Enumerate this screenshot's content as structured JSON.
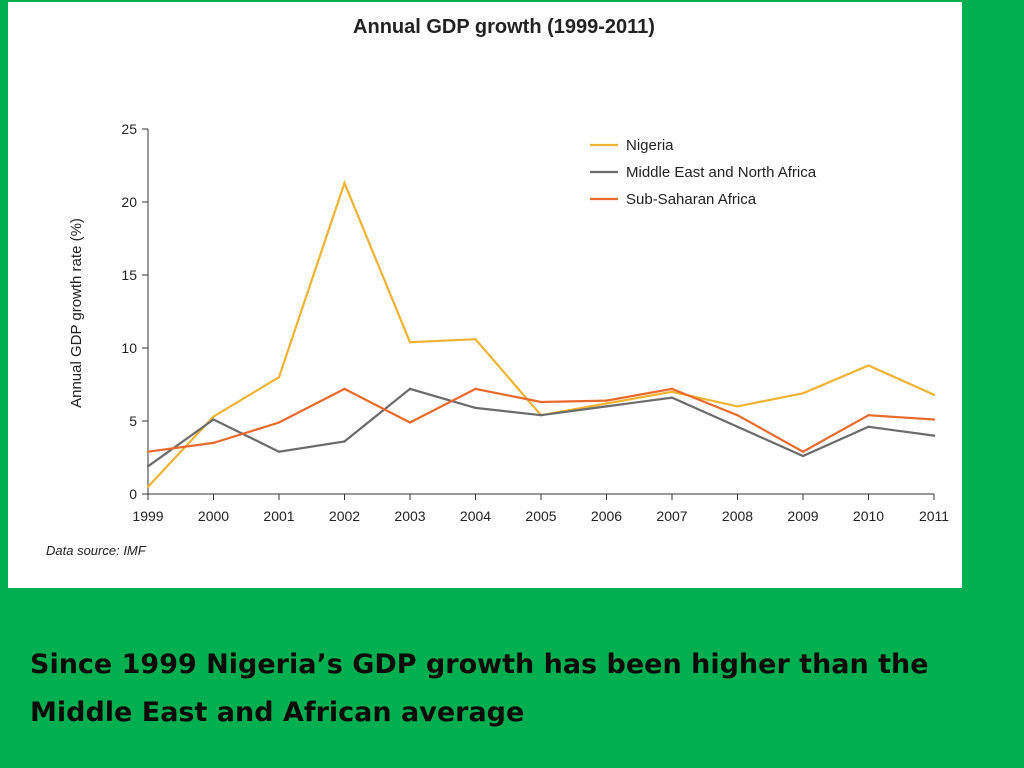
{
  "colors": {
    "background": "#00b050",
    "panel": "#ffffff",
    "nigeria": "#f0b232",
    "mena": "#6b6b6b",
    "ssa": "#e8692b",
    "axis": "#333333",
    "text": "#222222"
  },
  "slide": {
    "caption": "Since 1999 Nigeria’s GDP growth has been higher than the Middle East and African average"
  },
  "chart_data": {
    "type": "line",
    "title": "Annual GDP growth (1999-2011)",
    "xlabel": "",
    "ylabel": "Annual GDP growth rate (%)",
    "source": "Data source: IMF",
    "x": [
      "1999",
      "2000",
      "2001",
      "2002",
      "2003",
      "2004",
      "2005",
      "2006",
      "2007",
      "2008",
      "2009",
      "2010",
      "2011"
    ],
    "ylim": [
      0,
      25
    ],
    "yticks": [
      "0",
      "5",
      "10",
      "15",
      "20",
      "25"
    ],
    "grid": false,
    "legend_position": "top-right",
    "series": [
      {
        "name": "Nigeria",
        "color": "#f0b232",
        "values": [
          0.5,
          5.3,
          8.0,
          21.3,
          10.4,
          10.6,
          5.4,
          6.2,
          7.0,
          6.0,
          6.9,
          8.8,
          6.8
        ]
      },
      {
        "name": "Middle East and North Africa",
        "color": "#6b6b6b",
        "values": [
          1.9,
          5.1,
          2.9,
          3.6,
          7.2,
          5.9,
          5.4,
          6.0,
          6.6,
          4.6,
          2.6,
          4.6,
          4.0
        ]
      },
      {
        "name": "Sub-Saharan Africa",
        "color": "#e8692b",
        "values": [
          2.9,
          3.5,
          4.9,
          7.2,
          4.9,
          7.2,
          6.3,
          6.4,
          7.2,
          5.4,
          2.9,
          5.4,
          5.1
        ]
      }
    ]
  }
}
